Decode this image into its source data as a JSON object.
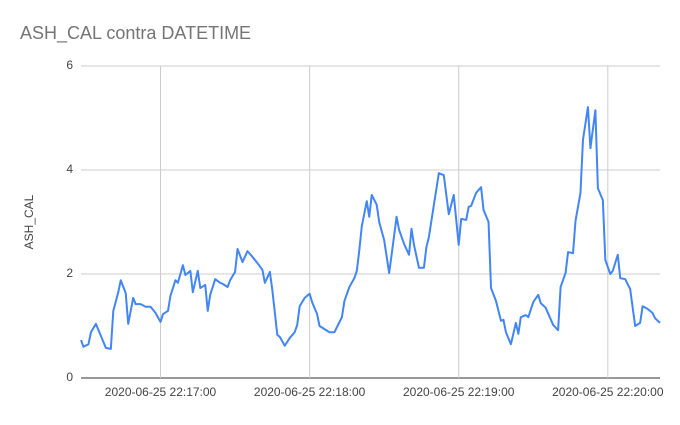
{
  "chart_data": {
    "type": "line",
    "title": "ASH_CAL contra DATETIME",
    "y_label": "ASH_CAL",
    "color": "#4285f4",
    "grid": true,
    "x": [
      "2020-06-25 22:16:28",
      "2020-06-25 22:16:29",
      "2020-06-25 22:16:31",
      "2020-06-25 22:16:32",
      "2020-06-25 22:16:34",
      "2020-06-25 22:16:38",
      "2020-06-25 22:16:40",
      "2020-06-25 22:16:41",
      "2020-06-25 22:16:43",
      "2020-06-25 22:16:44",
      "2020-06-25 22:16:46",
      "2020-06-25 22:16:47",
      "2020-06-25 22:16:49",
      "2020-06-25 22:16:50",
      "2020-06-25 22:16:52",
      "2020-06-25 22:16:54",
      "2020-06-25 22:16:56",
      "2020-06-25 22:16:58",
      "2020-06-25 22:17:00",
      "2020-06-25 22:17:01",
      "2020-06-25 22:17:03",
      "2020-06-25 22:17:04",
      "2020-06-25 22:17:06",
      "2020-06-25 22:17:07",
      "2020-06-25 22:17:09",
      "2020-06-25 22:17:10",
      "2020-06-25 22:17:12",
      "2020-06-25 22:17:13",
      "2020-06-25 22:17:15",
      "2020-06-25 22:17:16",
      "2020-06-25 22:17:18",
      "2020-06-25 22:17:19",
      "2020-06-25 22:17:20",
      "2020-06-25 22:17:22",
      "2020-06-25 22:17:24",
      "2020-06-25 22:17:25",
      "2020-06-25 22:17:27",
      "2020-06-25 22:17:28",
      "2020-06-25 22:17:30",
      "2020-06-25 22:17:31",
      "2020-06-25 22:17:33",
      "2020-06-25 22:17:35",
      "2020-06-25 22:17:37",
      "2020-06-25 22:17:39",
      "2020-06-25 22:17:41",
      "2020-06-25 22:17:42",
      "2020-06-25 22:17:44",
      "2020-06-25 22:17:45",
      "2020-06-25 22:17:47",
      "2020-06-25 22:17:48",
      "2020-06-25 22:17:50",
      "2020-06-25 22:17:52",
      "2020-06-25 22:17:54",
      "2020-06-25 22:17:55",
      "2020-06-25 22:17:56",
      "2020-06-25 22:17:58",
      "2020-06-25 22:18:00",
      "2020-06-25 22:18:01",
      "2020-06-25 22:18:03",
      "2020-06-25 22:18:04",
      "2020-06-25 22:18:06",
      "2020-06-25 22:18:08",
      "2020-06-25 22:18:10",
      "2020-06-25 22:18:11",
      "2020-06-25 22:18:13",
      "2020-06-25 22:18:14",
      "2020-06-25 22:18:16",
      "2020-06-25 22:18:18",
      "2020-06-25 22:18:19",
      "2020-06-25 22:18:20",
      "2020-06-25 22:18:21",
      "2020-06-25 22:18:23",
      "2020-06-25 22:18:24",
      "2020-06-25 22:18:25",
      "2020-06-25 22:18:27",
      "2020-06-25 22:18:28",
      "2020-06-25 22:18:30",
      "2020-06-25 22:18:32",
      "2020-06-25 22:18:33",
      "2020-06-25 22:18:35",
      "2020-06-25 22:18:36",
      "2020-06-25 22:18:38",
      "2020-06-25 22:18:40",
      "2020-06-25 22:18:41",
      "2020-06-25 22:18:42",
      "2020-06-25 22:18:44",
      "2020-06-25 22:18:46",
      "2020-06-25 22:18:47",
      "2020-06-25 22:18:48",
      "2020-06-25 22:18:50",
      "2020-06-25 22:18:51",
      "2020-06-25 22:18:52",
      "2020-06-25 22:18:54",
      "2020-06-25 22:18:56",
      "2020-06-25 22:18:58",
      "2020-06-25 22:19:00",
      "2020-06-25 22:19:01",
      "2020-06-25 22:19:03",
      "2020-06-25 22:19:04",
      "2020-06-25 22:19:05",
      "2020-06-25 22:19:07",
      "2020-06-25 22:19:09",
      "2020-06-25 22:19:10",
      "2020-06-25 22:19:12",
      "2020-06-25 22:19:13",
      "2020-06-25 22:19:15",
      "2020-06-25 22:19:17",
      "2020-06-25 22:19:18",
      "2020-06-25 22:19:19",
      "2020-06-25 22:19:21",
      "2020-06-25 22:19:23",
      "2020-06-25 22:19:24",
      "2020-06-25 22:19:25",
      "2020-06-25 22:19:27",
      "2020-06-25 22:19:28",
      "2020-06-25 22:19:30",
      "2020-06-25 22:19:32",
      "2020-06-25 22:19:33",
      "2020-06-25 22:19:35",
      "2020-06-25 22:19:38",
      "2020-06-25 22:19:40",
      "2020-06-25 22:19:41",
      "2020-06-25 22:19:43",
      "2020-06-25 22:19:44",
      "2020-06-25 22:19:46",
      "2020-06-25 22:19:47",
      "2020-06-25 22:19:49",
      "2020-06-25 22:19:50",
      "2020-06-25 22:19:52",
      "2020-06-25 22:19:53",
      "2020-06-25 22:19:55",
      "2020-06-25 22:19:56",
      "2020-06-25 22:19:58",
      "2020-06-25 22:19:59",
      "2020-06-25 22:20:01",
      "2020-06-25 22:20:02",
      "2020-06-25 22:20:04",
      "2020-06-25 22:20:05",
      "2020-06-25 22:20:07",
      "2020-06-25 22:20:09",
      "2020-06-25 22:20:11",
      "2020-06-25 22:20:13",
      "2020-06-25 22:20:14",
      "2020-06-25 22:20:16",
      "2020-06-25 22:20:18",
      "2020-06-25 22:20:19",
      "2020-06-25 22:20:21"
    ],
    "values": [
      0.73,
      0.6,
      0.65,
      0.88,
      1.04,
      0.58,
      0.56,
      1.29,
      1.65,
      1.88,
      1.63,
      1.04,
      1.54,
      1.42,
      1.42,
      1.37,
      1.37,
      1.25,
      1.08,
      1.23,
      1.29,
      1.58,
      1.88,
      1.83,
      2.17,
      1.98,
      2.06,
      1.65,
      2.06,
      1.73,
      1.79,
      1.29,
      1.6,
      1.9,
      1.83,
      1.81,
      1.75,
      1.88,
      2.04,
      2.48,
      2.23,
      2.44,
      2.33,
      2.21,
      2.08,
      1.83,
      2.04,
      1.69,
      0.83,
      0.79,
      0.62,
      0.77,
      0.88,
      1.02,
      1.38,
      1.54,
      1.62,
      1.46,
      1.23,
      1.0,
      0.94,
      0.88,
      0.88,
      0.98,
      1.17,
      1.48,
      1.75,
      1.92,
      2.06,
      2.46,
      2.92,
      3.4,
      3.1,
      3.52,
      3.33,
      3.0,
      2.65,
      2.02,
      2.37,
      3.1,
      2.85,
      2.58,
      2.37,
      2.87,
      2.56,
      2.12,
      2.12,
      2.52,
      2.71,
      3.33,
      3.63,
      3.94,
      3.9,
      3.15,
      3.52,
      2.56,
      3.06,
      3.04,
      3.29,
      3.31,
      3.56,
      3.67,
      3.23,
      3.0,
      1.73,
      1.48,
      1.1,
      1.12,
      0.88,
      0.65,
      1.06,
      0.85,
      1.17,
      1.21,
      1.17,
      1.46,
      1.6,
      1.44,
      1.35,
      1.02,
      0.92,
      1.75,
      2.02,
      2.42,
      2.4,
      3.02,
      3.56,
      4.58,
      5.21,
      4.42,
      5.15,
      3.65,
      3.42,
      2.27,
      2.0,
      2.06,
      2.37,
      1.92,
      1.9,
      1.71,
      1.0,
      1.06,
      1.38,
      1.33,
      1.25,
      1.15,
      1.06
    ],
    "xlim": [
      "2020-06-25 22:16:28",
      "2020-06-25 22:20:21"
    ],
    "xticks": [
      "2020-06-25 22:17:00",
      "2020-06-25 22:18:00",
      "2020-06-25 22:19:00",
      "2020-06-25 22:20:00"
    ],
    "ylim": [
      0,
      6
    ],
    "yticks": [
      0,
      2,
      4,
      6
    ]
  }
}
